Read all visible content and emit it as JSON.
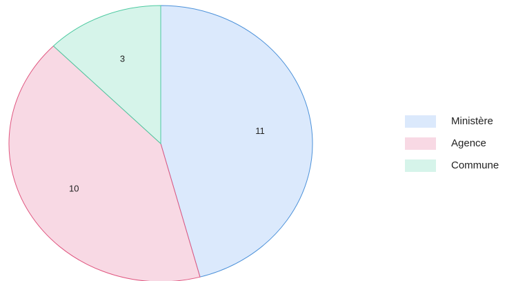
{
  "chart_data": {
    "type": "pie",
    "categories": [
      "Ministère",
      "Agence",
      "Commune"
    ],
    "values": [
      11,
      10,
      3
    ],
    "colors": [
      "#dbe9fc",
      "#f8d9e4",
      "#d6f4ea"
    ],
    "edge_colors": [
      "#4a90d9",
      "#e0557f",
      "#4cc9a0"
    ],
    "legend": "right"
  }
}
